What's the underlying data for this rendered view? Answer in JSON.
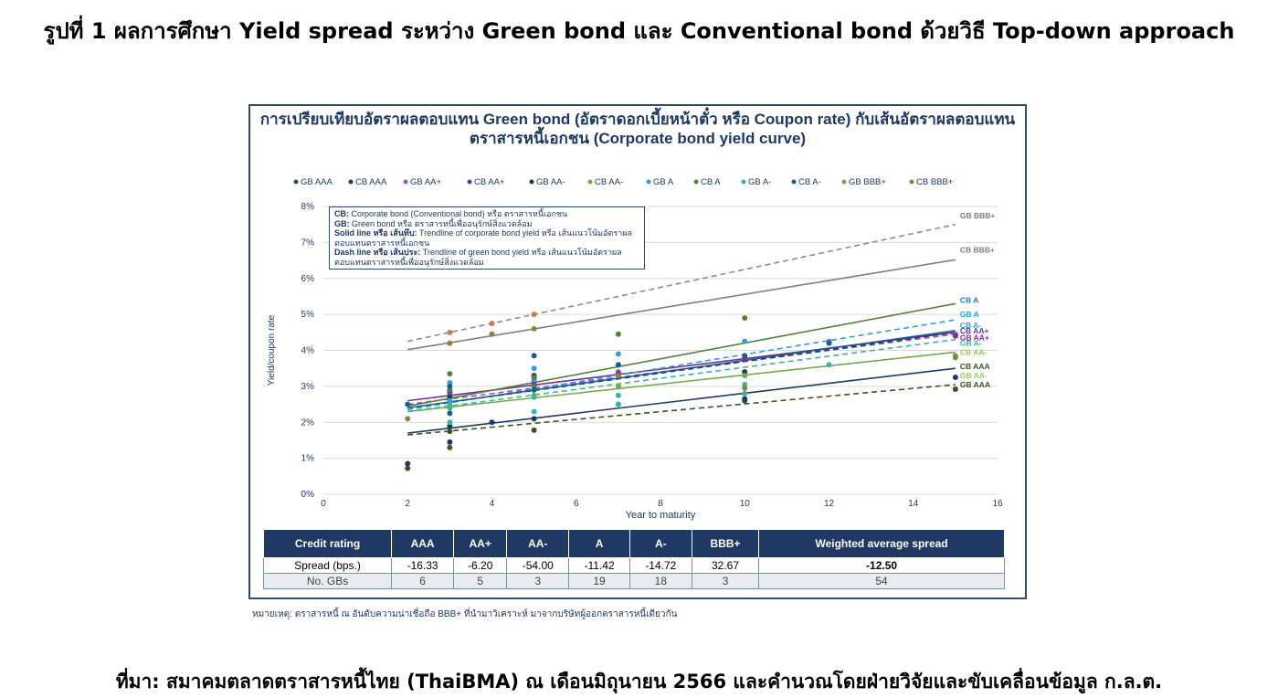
{
  "figure_title": "รูปที่ 1 ผลการศึกษา Yield spread ระหว่าง Green bond และ Conventional bond ด้วยวิธี Top-down approach",
  "note": "หมายเหตุ: ตราสารหนี้ ณ อันดับความน่าเชื่อถือ BBB+ ที่นำมาวิเคราะห์ มาจากบริษัทผู้ออกตราสารหนี้เดียวกัน",
  "source": "ที่มา: สมาคมตลาดตราสารหนี้ไทย (ThaiBMA) ณ เดือนมิถุนายน 2566 และคำนวณโดยฝ่ายวิจัยและขับเคลื่อนข้อมูล ก.ล.ต.",
  "definitions": [
    {
      "term": "CB:",
      "text": " Corporate bond (Conventional bond) หรือ ตราสารหนี้เอกชน"
    },
    {
      "term": "GB:",
      "text": " Green bond หรือ ตราสารหนี้เพื่ออนุรักษ์สิ่งแวดล้อม"
    },
    {
      "term": "Solid line หรือ เส้นทึบ:",
      "text": " Trendline of corporate bond yield หรือ เส้นแนวโน้มอัตราผลตอบแทนตราสารหนี้เอกชน"
    },
    {
      "term": "Dash line หรือ เส้นประ:",
      "text": " Trendline of green bond yield หรือ เส้นแนวโน้มอัตราผลตอบแทนตราสารหนี้เพื่ออนุรักษ์สิ่งแวดล้อม"
    }
  ],
  "table": {
    "headers": [
      "Credit rating",
      "AAA",
      "AA+",
      "AA-",
      "A",
      "A-",
      "BBB+",
      "Weighted average spread"
    ],
    "rows": [
      [
        "Spread (bps.)",
        "-16.33",
        "-6.20",
        "-54.00",
        "-11.42",
        "-14.72",
        "32.67",
        "-12.50"
      ],
      [
        "No. GBs",
        "6",
        "5",
        "3",
        "19",
        "18",
        "3",
        "54"
      ]
    ]
  },
  "chart_data": {
    "type": "scatter",
    "title": "การเปรียบเทียบอัตราผลตอบแทน Green bond (อัตราดอกเบี้ยหน้าตั๋ว หรือ Coupon rate) กับเส้นอัตราผลตอบแทนตราสารหนี้เอกชน (Corporate bond yield curve)",
    "xlabel": "Year to maturity",
    "ylabel": "Yield/coupon rate",
    "xlim": [
      0,
      16
    ],
    "ylim": [
      0,
      8
    ],
    "x_ticks": [
      0,
      2,
      4,
      6,
      8,
      10,
      12,
      14,
      16
    ],
    "y_ticks": [
      "0%",
      "1%",
      "2%",
      "3%",
      "4%",
      "5%",
      "6%",
      "7%",
      "8%"
    ],
    "grid": "horizontal",
    "legend_position": "top",
    "series": [
      {
        "name": "GB AAA",
        "color": "#375623",
        "trend": "dash",
        "trend_points": [
          [
            2,
            1.65
          ],
          [
            15,
            3.05
          ]
        ],
        "points": [
          [
            2,
            0.72
          ],
          [
            3,
            1.3
          ],
          [
            3,
            1.75
          ],
          [
            5,
            1.78
          ],
          [
            10,
            2.6
          ],
          [
            15,
            2.92
          ]
        ]
      },
      {
        "name": "CB AAA",
        "color": "#203864",
        "trend": "solid",
        "trend_points": [
          [
            2,
            1.7
          ],
          [
            15,
            3.5
          ]
        ],
        "points": [
          [
            2,
            0.85
          ],
          [
            3,
            1.45
          ],
          [
            3,
            1.9
          ],
          [
            4,
            2.0
          ],
          [
            5,
            2.1
          ],
          [
            7,
            2.5
          ],
          [
            10,
            2.65
          ],
          [
            15,
            3.25
          ]
        ]
      },
      {
        "name": "GB AA+",
        "color": "#9f4fbd",
        "trend": "dash",
        "trend_points": [
          [
            2,
            2.5
          ],
          [
            15,
            4.45
          ]
        ],
        "points": [
          [
            3,
            2.8
          ],
          [
            5,
            3.15
          ],
          [
            7,
            3.4
          ],
          [
            10,
            3.8
          ],
          [
            15,
            4.45
          ]
        ]
      },
      {
        "name": "CB AA+",
        "color": "#7030a0",
        "trend": "solid",
        "trend_points": [
          [
            2,
            2.6
          ],
          [
            15,
            4.5
          ]
        ],
        "points": [
          [
            3,
            2.85
          ],
          [
            5,
            3.05
          ],
          [
            7,
            3.35
          ],
          [
            10,
            3.75
          ],
          [
            15,
            4.4
          ]
        ]
      },
      {
        "name": "GB AA-",
        "color": "#1f3864",
        "trend": "dash",
        "trend_points": [
          [
            2,
            2.4
          ],
          [
            15,
            4.5
          ]
        ],
        "points": [
          [
            3,
            2.7
          ],
          [
            5,
            3.3
          ],
          [
            10,
            3.4
          ]
        ]
      },
      {
        "name": "CB AA-",
        "color": "#70ad47",
        "trend": "solid",
        "trend_points": [
          [
            2,
            2.3
          ],
          [
            15,
            3.95
          ]
        ],
        "points": [
          [
            3,
            2.5
          ],
          [
            5,
            2.75
          ],
          [
            7,
            3.0
          ],
          [
            10,
            3.3
          ],
          [
            15,
            3.85
          ]
        ]
      },
      {
        "name": "GB A",
        "color": "#2e9fe0",
        "trend": "dash",
        "trend_points": [
          [
            2,
            2.35
          ],
          [
            15,
            4.85
          ]
        ],
        "points": [
          [
            3,
            2.6
          ],
          [
            3,
            3.1
          ],
          [
            5,
            3.2
          ],
          [
            5,
            3.5
          ],
          [
            7,
            3.9
          ],
          [
            10,
            4.25
          ],
          [
            12,
            4.25
          ]
        ]
      },
      {
        "name": "CB A",
        "color": "#548235",
        "trend": "solid",
        "trend_points": [
          [
            2,
            2.45
          ],
          [
            15,
            5.3
          ]
        ],
        "points": [
          [
            3,
            2.9
          ],
          [
            3,
            3.35
          ],
          [
            5,
            3.0
          ],
          [
            5,
            3.25
          ],
          [
            7,
            4.45
          ],
          [
            10,
            4.9
          ]
        ]
      },
      {
        "name": "GB A-",
        "color": "#3cb4a0",
        "trend": "dash",
        "trend_points": [
          [
            2,
            2.3
          ],
          [
            15,
            4.3
          ]
        ],
        "points": [
          [
            3,
            2.0
          ],
          [
            3,
            2.4
          ],
          [
            5,
            2.3
          ],
          [
            5,
            2.7
          ],
          [
            7,
            2.5
          ],
          [
            7,
            2.75
          ],
          [
            10,
            2.8
          ],
          [
            10,
            3.05
          ],
          [
            12,
            3.6
          ]
        ]
      },
      {
        "name": "CB A-",
        "color": "#1b5e8a",
        "trend": "solid",
        "trend_points": [
          [
            2,
            2.4
          ],
          [
            15,
            4.55
          ]
        ],
        "points": [
          [
            2,
            2.5
          ],
          [
            3,
            2.25
          ],
          [
            3,
            3.0
          ],
          [
            5,
            2.9
          ],
          [
            5,
            3.85
          ],
          [
            7,
            3.6
          ],
          [
            10,
            3.85
          ],
          [
            12,
            4.2
          ]
        ]
      },
      {
        "name": "GB BBB+",
        "color": "#c67e4e",
        "trend": "dash",
        "trend_points": [
          [
            2,
            4.25
          ],
          [
            15,
            7.5
          ]
        ],
        "points": [
          [
            3,
            4.5
          ],
          [
            4,
            4.75
          ],
          [
            5,
            5.0
          ]
        ]
      },
      {
        "name": "CB BBB+",
        "color": "#8e7f42",
        "trend": "solid",
        "trend_points": [
          [
            2,
            4.02
          ],
          [
            15,
            6.52
          ]
        ],
        "points": [
          [
            2,
            2.1
          ],
          [
            3,
            4.2
          ],
          [
            4,
            4.45
          ],
          [
            5,
            4.6
          ],
          [
            7,
            3.3
          ],
          [
            10,
            2.95
          ],
          [
            15,
            3.8
          ]
        ]
      }
    ],
    "end_labels": [
      {
        "text": "GB BBB+",
        "y": 7.75,
        "color": "#7f7f7f"
      },
      {
        "text": "CB BBB+",
        "y": 6.8,
        "color": "#7f7f7f"
      },
      {
        "text": "CB A",
        "y": 5.4,
        "color": "#2e75b6"
      },
      {
        "text": "GB A",
        "y": 5.0,
        "color": "#2e9fe0"
      },
      {
        "text": "CB A-",
        "y": 4.7,
        "color": "#2e9fe0"
      },
      {
        "text": "CB AA+",
        "y": 4.55,
        "color": "#7030a0"
      },
      {
        "text": "GB AA+",
        "y": 4.35,
        "color": "#7030a0"
      },
      {
        "text": "GB A-",
        "y": 4.2,
        "color": "#3cb4a0"
      },
      {
        "text": "CB AA-",
        "y": 3.95,
        "color": "#92d050"
      },
      {
        "text": "CB AAA",
        "y": 3.55,
        "color": "#375623"
      },
      {
        "text": "GB AA-",
        "y": 3.3,
        "color": "#92d050"
      },
      {
        "text": "GB AAA",
        "y": 3.05,
        "color": "#375623"
      }
    ]
  }
}
